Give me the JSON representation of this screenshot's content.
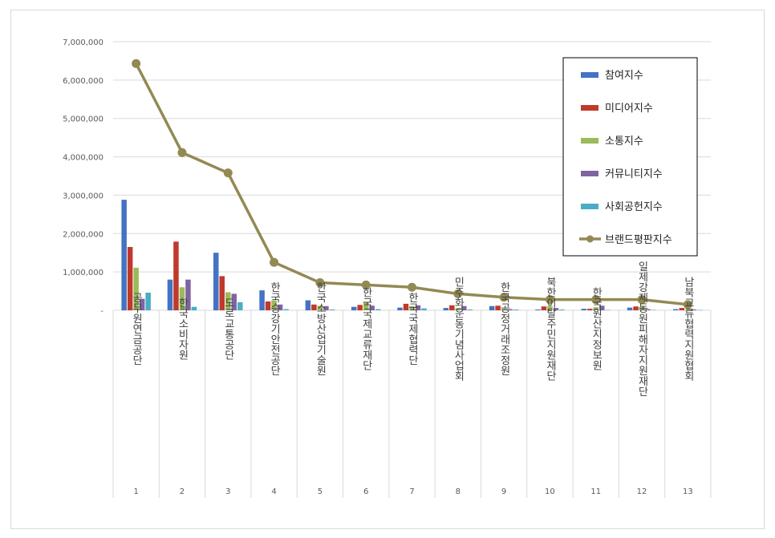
{
  "chart_data": {
    "type": "bar",
    "title": "",
    "xlabel": "",
    "ylabel": "",
    "ylim": [
      0,
      7000000
    ],
    "yticks": [
      "7,000,000",
      "6,000,000",
      "5,000,000",
      "4,000,000",
      "3,000,000",
      "2,000,000",
      "1,000,000",
      "-"
    ],
    "grid": true,
    "legend_position": "top-right",
    "ranks": [
      "1",
      "2",
      "3",
      "4",
      "5",
      "6",
      "7",
      "8",
      "9",
      "10",
      "11",
      "12",
      "13"
    ],
    "categories": [
      "공무원연금공단",
      "한국소비자원",
      "도로교통공단",
      "한국승강기안전공단",
      "한국소방산업기술원",
      "한국국제교류재단",
      "한국국제협력단",
      "민주화운동기념사업회",
      "한국공정거래조정원",
      "북한이탈주민지원재단",
      "한국원산지정보원",
      "일제강제동원피해자지원재단",
      "남북교류협력지원협회"
    ],
    "series": [
      {
        "name": "참여지수",
        "type": "bar",
        "color": "#4472c4",
        "values": [
          2880000,
          800000,
          1500000,
          520000,
          260000,
          90000,
          70000,
          60000,
          110000,
          20000,
          40000,
          70000,
          30000
        ]
      },
      {
        "name": "미디어지수",
        "type": "bar",
        "color": "#c0392b",
        "values": [
          1650000,
          1790000,
          890000,
          230000,
          150000,
          140000,
          170000,
          130000,
          120000,
          100000,
          40000,
          100000,
          60000
        ]
      },
      {
        "name": "소통지수",
        "type": "bar",
        "color": "#9bbb59",
        "values": [
          1110000,
          600000,
          470000,
          260000,
          120000,
          210000,
          110000,
          60000,
          40000,
          120000,
          80000,
          90000,
          20000
        ]
      },
      {
        "name": "커뮤니티지수",
        "type": "bar",
        "color": "#8064a2",
        "values": [
          300000,
          800000,
          430000,
          150000,
          110000,
          120000,
          130000,
          110000,
          30000,
          60000,
          120000,
          30000,
          20000
        ]
      },
      {
        "name": "사회공헌지수",
        "type": "bar",
        "color": "#4bacc6",
        "values": [
          460000,
          90000,
          210000,
          30000,
          20000,
          30000,
          50000,
          20000,
          20000,
          20000,
          10000,
          10000,
          10000
        ]
      },
      {
        "name": "브랜드평판지수",
        "type": "line",
        "color": "#938953",
        "values": [
          6430000,
          4110000,
          3580000,
          1250000,
          720000,
          660000,
          600000,
          430000,
          340000,
          280000,
          280000,
          280000,
          150000
        ]
      }
    ]
  }
}
